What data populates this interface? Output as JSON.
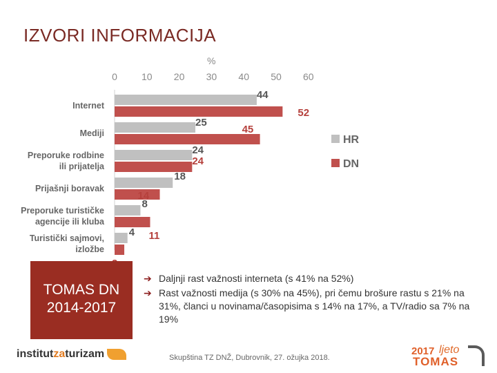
{
  "slide": {
    "title": "IZVORI INFORMACIJA",
    "badge_line1": "TOMAS DN",
    "badge_line2": "2014-2017",
    "bullets": [
      "Daljnji rast važnosti interneta (s 41% na 52%)",
      "Rast važnosti medija (s 30% na 45%), pri čemu brošure rastu s 21% na 31%, članci u novinama/časopisima s 14% na 17%, a TV/radio sa 7% na 19%"
    ],
    "footer": "Skupština TZ DNŽ, Dubrovnik, 27. ožujka 2018.",
    "logo_left": {
      "part1": "institut",
      "part2": "za",
      "part3": "turizam"
    },
    "logo_right": {
      "year": "2017",
      "word": "ljeto",
      "brand": "TOMAS"
    }
  },
  "colors": {
    "hr": "#c0c0c0",
    "dn": "#c0504d",
    "accent": "#9a2d22"
  },
  "chart_data": {
    "type": "bar",
    "orientation": "horizontal",
    "unit": "%",
    "xlim": [
      0,
      60
    ],
    "ticks": [
      0,
      10,
      20,
      30,
      40,
      50,
      60
    ],
    "categories": [
      [
        "Internet"
      ],
      [
        "Mediji"
      ],
      [
        "Preporuke rodbine",
        "ili prijatelja"
      ],
      [
        "Prijašnji boravak"
      ],
      [
        "Preporuke turističke",
        "agencije ili kluba"
      ],
      [
        "Turistički sajmovi,",
        "izložbe"
      ]
    ],
    "series": [
      {
        "name": "HR",
        "values": [
          44,
          25,
          24,
          18,
          8,
          4
        ]
      },
      {
        "name": "DN",
        "values": [
          52,
          45,
          24,
          14,
          11,
          3
        ]
      }
    ],
    "legend_position": "right"
  }
}
